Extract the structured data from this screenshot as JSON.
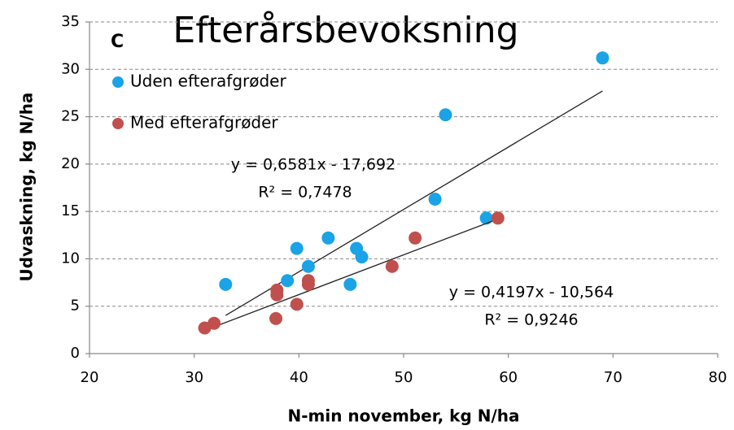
{
  "chart_data": {
    "type": "scatter",
    "title": "Efterårsbevoksning",
    "panel_label": "C",
    "x_label": "N-min november, kg N/ha",
    "y_label": "Udvaskning, kg N/ha",
    "xlim": [
      20,
      80
    ],
    "xticks": [
      20,
      30,
      40,
      50,
      60,
      70,
      80
    ],
    "ylim": [
      0,
      35
    ],
    "yticks": [
      0,
      5,
      10,
      15,
      20,
      25,
      30,
      35
    ],
    "grid": true,
    "legend": "upper left",
    "series": [
      {
        "name": "Uden efterafgrøder",
        "color": "#1aa3e6",
        "x": [
          33,
          38.9,
          39.8,
          40.9,
          42.8,
          44.9,
          45.5,
          46,
          53,
          54,
          57.9,
          69
        ],
        "values": [
          7.3,
          7.7,
          11.1,
          9.2,
          12.2,
          7.3,
          11.1,
          10.2,
          16.3,
          25.2,
          14.3,
          31.2
        ],
        "trendline": {
          "slope": 0.6581,
          "intercept": -17.692,
          "xrange": [
            33,
            69
          ],
          "equation": "y = 0,6581x - 17,692",
          "r2": "R² = 0,7478"
        }
      },
      {
        "name": "Med efterafgrøder",
        "color": "#c0504d",
        "x": [
          31,
          31.9,
          37.8,
          37.9,
          37.9,
          39.8,
          40.9,
          40.9,
          48.9,
          51.1,
          59
        ],
        "values": [
          2.7,
          3.2,
          3.7,
          6.7,
          6.2,
          5.2,
          7.7,
          7.3,
          9.2,
          12.2,
          14.3
        ],
        "trendline": {
          "slope": 0.4197,
          "intercept": -10.564,
          "xrange": [
            31,
            59
          ],
          "equation": "y = 0,4197x - 10,564",
          "r2": "R² = 0,9246"
        }
      }
    ]
  }
}
